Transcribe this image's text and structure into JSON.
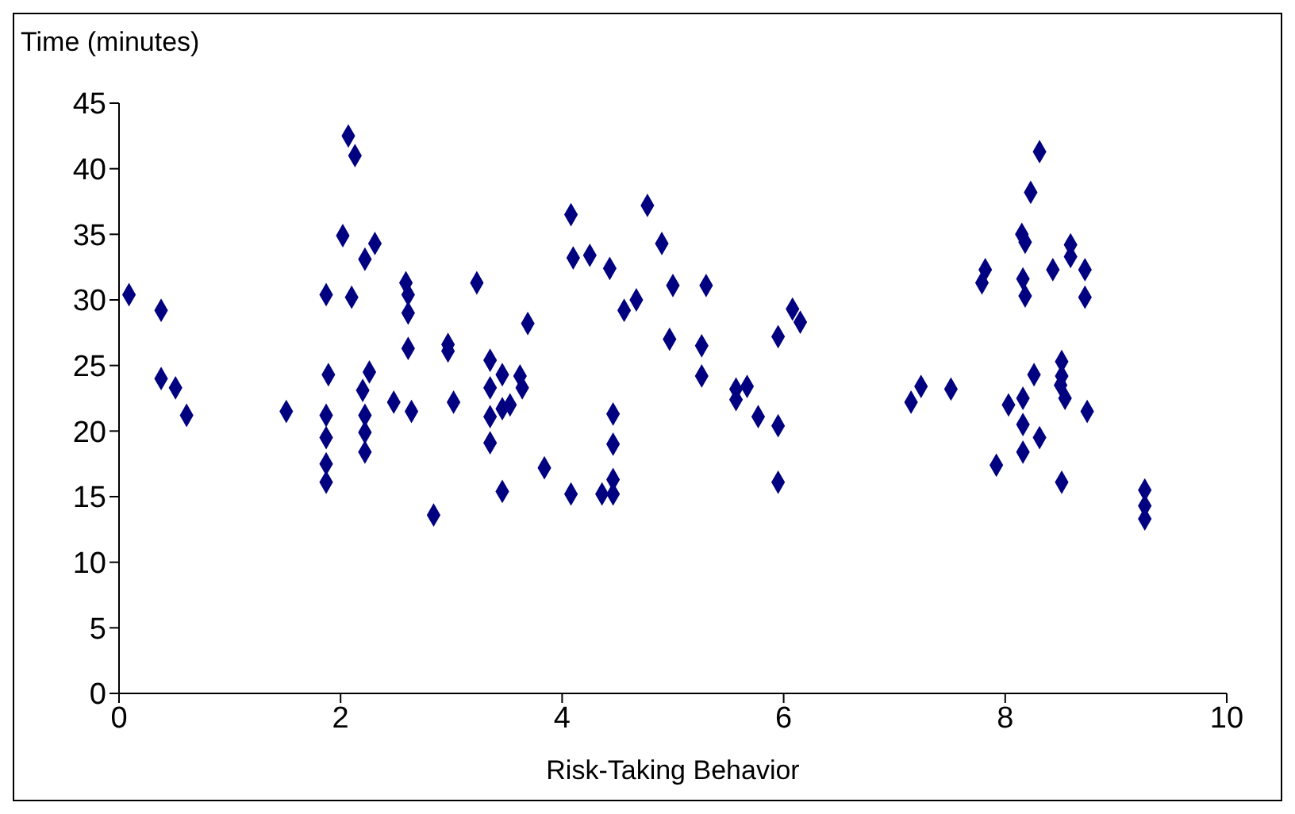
{
  "chart_data": {
    "type": "scatter",
    "ylabel": "Time (minutes)",
    "xlabel": "Risk-Taking Behavior",
    "marker": "diamond",
    "grid": false,
    "xlim": [
      0,
      10
    ],
    "xticks": [
      0,
      2,
      4,
      6,
      8,
      10
    ],
    "ylim": [
      0,
      45
    ],
    "yticks": [
      0,
      5,
      10,
      15,
      20,
      25,
      30,
      35,
      40,
      45
    ],
    "series": [
      {
        "color": "#000080",
        "x": [
          0.09,
          0.38,
          0.38,
          0.51,
          0.61,
          1.51,
          1.87,
          1.89,
          1.87,
          1.87,
          1.87,
          1.87,
          2.07,
          2.13,
          2.02,
          2.31,
          2.22,
          2.1,
          2.26,
          2.2,
          2.22,
          2.22,
          2.22,
          2.48,
          2.64,
          2.59,
          2.61,
          2.61,
          2.61,
          2.84,
          2.97,
          2.97,
          3.02,
          3.23,
          3.69,
          3.35,
          3.46,
          3.62,
          3.64,
          3.35,
          3.53,
          3.46,
          3.35,
          3.35,
          3.84,
          3.46,
          4.08,
          4.36,
          4.46,
          4.46,
          4.46,
          4.46,
          4.08,
          4.1,
          4.25,
          4.43,
          4.77,
          4.9,
          5.0,
          5.3,
          4.67,
          4.56,
          4.97,
          5.26,
          5.26,
          5.57,
          5.67,
          5.57,
          5.77,
          5.95,
          5.95,
          5.95,
          6.08,
          6.15,
          8.31,
          8.23,
          8.15,
          8.18,
          8.59,
          8.59,
          8.43,
          8.72,
          7.82,
          7.79,
          8.16,
          8.18,
          8.72,
          8.51,
          8.26,
          8.51,
          8.5,
          8.54,
          8.74,
          7.24,
          7.15,
          7.51,
          8.03,
          8.16,
          8.16,
          8.31,
          8.16,
          7.92,
          8.51,
          9.26,
          9.26,
          9.26
        ],
        "values": [
          30.4,
          29.2,
          24.0,
          23.3,
          21.2,
          21.5,
          30.4,
          24.3,
          21.2,
          19.5,
          17.5,
          16.1,
          42.5,
          41.0,
          34.9,
          34.3,
          33.1,
          30.2,
          24.5,
          23.1,
          21.2,
          19.9,
          18.4,
          22.2,
          21.5,
          31.3,
          30.4,
          29.0,
          26.3,
          13.6,
          26.6,
          26.1,
          22.2,
          31.3,
          28.2,
          25.4,
          24.3,
          24.2,
          23.3,
          23.3,
          22.0,
          21.7,
          21.1,
          19.1,
          17.2,
          15.4,
          15.2,
          15.2,
          15.2,
          16.3,
          19.0,
          21.3,
          36.5,
          33.2,
          33.4,
          32.4,
          37.2,
          34.3,
          31.1,
          31.1,
          30.0,
          29.2,
          27.0,
          26.5,
          24.2,
          23.2,
          23.4,
          22.4,
          21.1,
          20.4,
          16.1,
          27.2,
          29.3,
          28.3,
          41.3,
          38.2,
          35.0,
          34.4,
          34.2,
          33.3,
          32.3,
          32.3,
          32.3,
          31.3,
          31.6,
          30.3,
          30.2,
          25.3,
          24.3,
          24.2,
          23.5,
          22.5,
          21.5,
          23.4,
          22.2,
          23.2,
          22.0,
          22.5,
          20.5,
          19.5,
          18.4,
          17.4,
          16.1,
          15.5,
          14.3,
          13.3
        ]
      }
    ]
  }
}
